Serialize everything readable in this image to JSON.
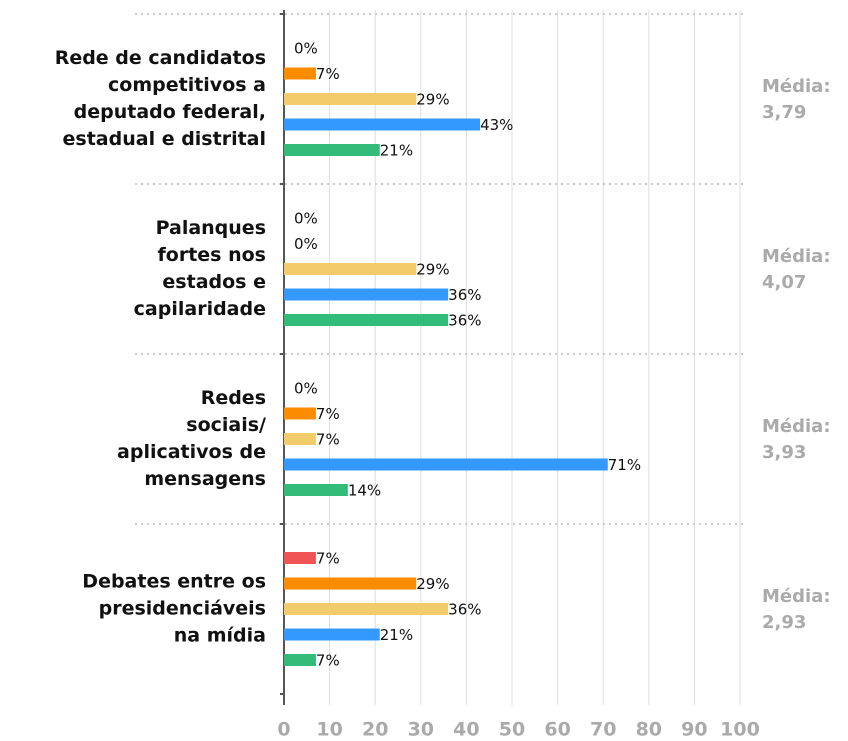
{
  "chart_data": {
    "type": "bar",
    "orientation": "horizontal",
    "categories": [
      "Rede de candidatos\ncompetitivos a\ndeputado federal,\nestadual e distrital",
      "Palanques\nfortes nos\nestados e\ncapilaridade",
      "Redes\nsociais/\naplicativos de\nmensagens",
      "Debates entre os\npresidenciáveis\nna mídia"
    ],
    "series": [
      {
        "color": "#f05454",
        "values": [
          0,
          0,
          0,
          7
        ],
        "value_labels": [
          "0%",
          "0%",
          "0%",
          "7%"
        ]
      },
      {
        "color": "#fb8c00",
        "values": [
          7,
          0,
          7,
          29
        ],
        "value_labels": [
          "7%",
          "0%",
          "7%",
          "29%"
        ]
      },
      {
        "color": "#f2cc6b",
        "values": [
          29,
          29,
          7,
          36
        ],
        "value_labels": [
          "29%",
          "29%",
          "7%",
          "36%"
        ]
      },
      {
        "color": "#3399ff",
        "values": [
          43,
          36,
          71,
          21
        ],
        "value_labels": [
          "43%",
          "36%",
          "71%",
          "21%"
        ]
      },
      {
        "color": "#33bb7a",
        "values": [
          21,
          36,
          14,
          7
        ],
        "value_labels": [
          "21%",
          "36%",
          "14%",
          "7%"
        ]
      }
    ],
    "annotations": [
      {
        "label": "Média:",
        "value": "3,79"
      },
      {
        "label": "Média:",
        "value": "4,07"
      },
      {
        "label": "Média:",
        "value": "3,93"
      },
      {
        "label": "Média:",
        "value": "2,93"
      }
    ],
    "xlim": [
      0,
      100
    ],
    "xticks": [
      0,
      10,
      20,
      30,
      40,
      50,
      60,
      70,
      80,
      90,
      100
    ],
    "grid": true
  }
}
